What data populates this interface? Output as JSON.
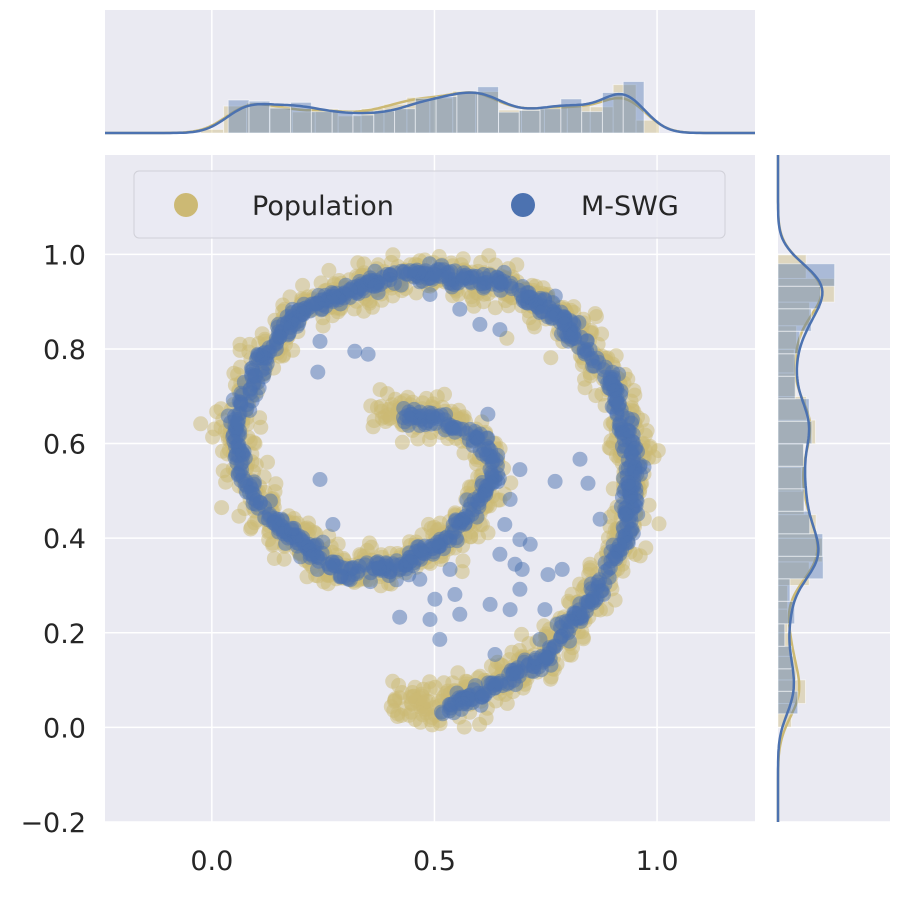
{
  "chart_data": {
    "type": "scatter",
    "title": "",
    "xlabel": "",
    "ylabel": "",
    "xlim": [
      -0.24,
      1.22
    ],
    "ylim": [
      -0.2,
      1.21
    ],
    "xticks": [
      0.0,
      0.5,
      1.0
    ],
    "xtick_labels": [
      "0.0",
      "0.5",
      "1.0"
    ],
    "yticks": [
      -0.2,
      0.0,
      0.2,
      0.4,
      0.6,
      0.8,
      1.0
    ],
    "ytick_labels": [
      "−0.2",
      "0.0",
      "0.2",
      "0.4",
      "0.6",
      "0.8",
      "1.0"
    ],
    "grid": true,
    "legend_position": "top",
    "marginals": {
      "top": "histogram+kde of x",
      "right": "histogram+kde of y",
      "bins": 20
    },
    "series": [
      {
        "name": "Population",
        "color": "#ccb974",
        "n_points": 1500,
        "noise_sd": 0.022,
        "centerline": [
          [
            0.37,
            0.68
          ],
          [
            0.42,
            0.66
          ],
          [
            0.51,
            0.65
          ],
          [
            0.6,
            0.61
          ],
          [
            0.64,
            0.55
          ],
          [
            0.6,
            0.48
          ],
          [
            0.53,
            0.4
          ],
          [
            0.42,
            0.34
          ],
          [
            0.29,
            0.33
          ],
          [
            0.18,
            0.4
          ],
          [
            0.085,
            0.5
          ],
          [
            0.05,
            0.63
          ],
          [
            0.11,
            0.78
          ],
          [
            0.2,
            0.88
          ],
          [
            0.38,
            0.95
          ],
          [
            0.51,
            0.96
          ],
          [
            0.65,
            0.94
          ],
          [
            0.78,
            0.87
          ],
          [
            0.89,
            0.74
          ],
          [
            0.95,
            0.57
          ],
          [
            0.93,
            0.4
          ],
          [
            0.85,
            0.27
          ],
          [
            0.74,
            0.14
          ],
          [
            0.62,
            0.08
          ],
          [
            0.53,
            0.05
          ],
          [
            0.47,
            0.05
          ],
          [
            0.4,
            0.05
          ]
        ],
        "extra_points": []
      },
      {
        "name": "M-SWG",
        "color": "#4c72b0",
        "n_points": 1000,
        "noise_sd": 0.009,
        "centerline": [
          [
            0.42,
            0.66
          ],
          [
            0.51,
            0.65
          ],
          [
            0.6,
            0.61
          ],
          [
            0.64,
            0.55
          ],
          [
            0.6,
            0.48
          ],
          [
            0.53,
            0.4
          ],
          [
            0.42,
            0.34
          ],
          [
            0.29,
            0.33
          ],
          [
            0.18,
            0.4
          ],
          [
            0.085,
            0.5
          ],
          [
            0.05,
            0.63
          ],
          [
            0.11,
            0.78
          ],
          [
            0.2,
            0.88
          ],
          [
            0.38,
            0.95
          ],
          [
            0.51,
            0.96
          ],
          [
            0.65,
            0.94
          ],
          [
            0.78,
            0.87
          ],
          [
            0.89,
            0.74
          ],
          [
            0.95,
            0.57
          ],
          [
            0.93,
            0.4
          ],
          [
            0.85,
            0.27
          ],
          [
            0.74,
            0.14
          ],
          [
            0.62,
            0.08
          ],
          [
            0.53,
            0.04
          ]
        ],
        "extra_points": [
          [
            0.243,
            0.816
          ],
          [
            0.321,
            0.795
          ],
          [
            0.351,
            0.789
          ],
          [
            0.238,
            0.751
          ],
          [
            0.49,
            0.915
          ],
          [
            0.557,
            0.884
          ],
          [
            0.602,
            0.852
          ],
          [
            0.647,
            0.841
          ],
          [
            0.243,
            0.524
          ],
          [
            0.272,
            0.429
          ],
          [
            0.692,
            0.545
          ],
          [
            0.67,
            0.482
          ],
          [
            0.658,
            0.429
          ],
          [
            0.692,
            0.397
          ],
          [
            0.715,
            0.387
          ],
          [
            0.647,
            0.366
          ],
          [
            0.681,
            0.345
          ],
          [
            0.697,
            0.334
          ],
          [
            0.755,
            0.323
          ],
          [
            0.692,
            0.292
          ],
          [
            0.535,
            0.334
          ],
          [
            0.467,
            0.313
          ],
          [
            0.501,
            0.271
          ],
          [
            0.546,
            0.281
          ],
          [
            0.422,
            0.233
          ],
          [
            0.49,
            0.228
          ],
          [
            0.512,
            0.186
          ],
          [
            0.557,
            0.239
          ],
          [
            0.625,
            0.26
          ],
          [
            0.67,
            0.249
          ],
          [
            0.748,
            0.249
          ],
          [
            0.787,
            0.334
          ],
          [
            0.737,
            0.186
          ],
          [
            0.636,
            0.154
          ],
          [
            0.872,
            0.44
          ],
          [
            0.845,
            0.516
          ],
          [
            0.771,
            0.52
          ],
          [
            0.827,
            0.567
          ],
          [
            0.62,
            0.662
          ],
          [
            0.58,
            0.63
          ]
        ]
      }
    ]
  },
  "legend": {
    "items": [
      "Population",
      "M-SWG"
    ]
  },
  "style": {
    "background": "#eaeaf2",
    "grid": "#ffffff"
  }
}
